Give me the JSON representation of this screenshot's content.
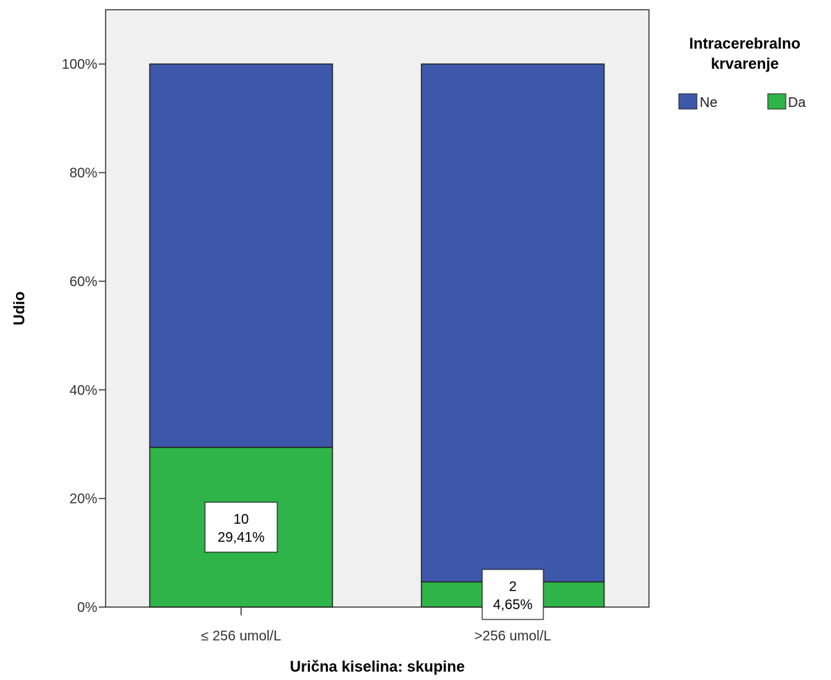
{
  "chart_data": {
    "type": "bar",
    "stacked": true,
    "categories": [
      "≤ 256 umol/L",
      ">256 umol/L"
    ],
    "series": [
      {
        "name": "Ne",
        "values": [
          70.59,
          95.35
        ],
        "color": "#3d58aa"
      },
      {
        "name": "Da",
        "values": [
          29.41,
          4.65
        ],
        "color": "#2eb448"
      }
    ],
    "data_labels": [
      {
        "category": "≤ 256 umol/L",
        "series": "Da",
        "count": "10",
        "percent": "29,41%"
      },
      {
        "category": ">256 umol/L",
        "series": "Da",
        "count": "2",
        "percent": "4,65%"
      }
    ],
    "xlabel": "Urična kiselina: skupine",
    "ylabel": "Udio",
    "ylim": [
      0,
      110
    ],
    "yticks": [
      0,
      20,
      40,
      60,
      80,
      100
    ],
    "ytick_labels": [
      "0%",
      "20%",
      "40%",
      "60%",
      "80%",
      "100%"
    ],
    "legend": {
      "title_lines": [
        "Intracerebralno",
        "krvarenje"
      ],
      "placement": "top-right"
    },
    "plot_background": "#f0f0f0",
    "grid": false
  }
}
